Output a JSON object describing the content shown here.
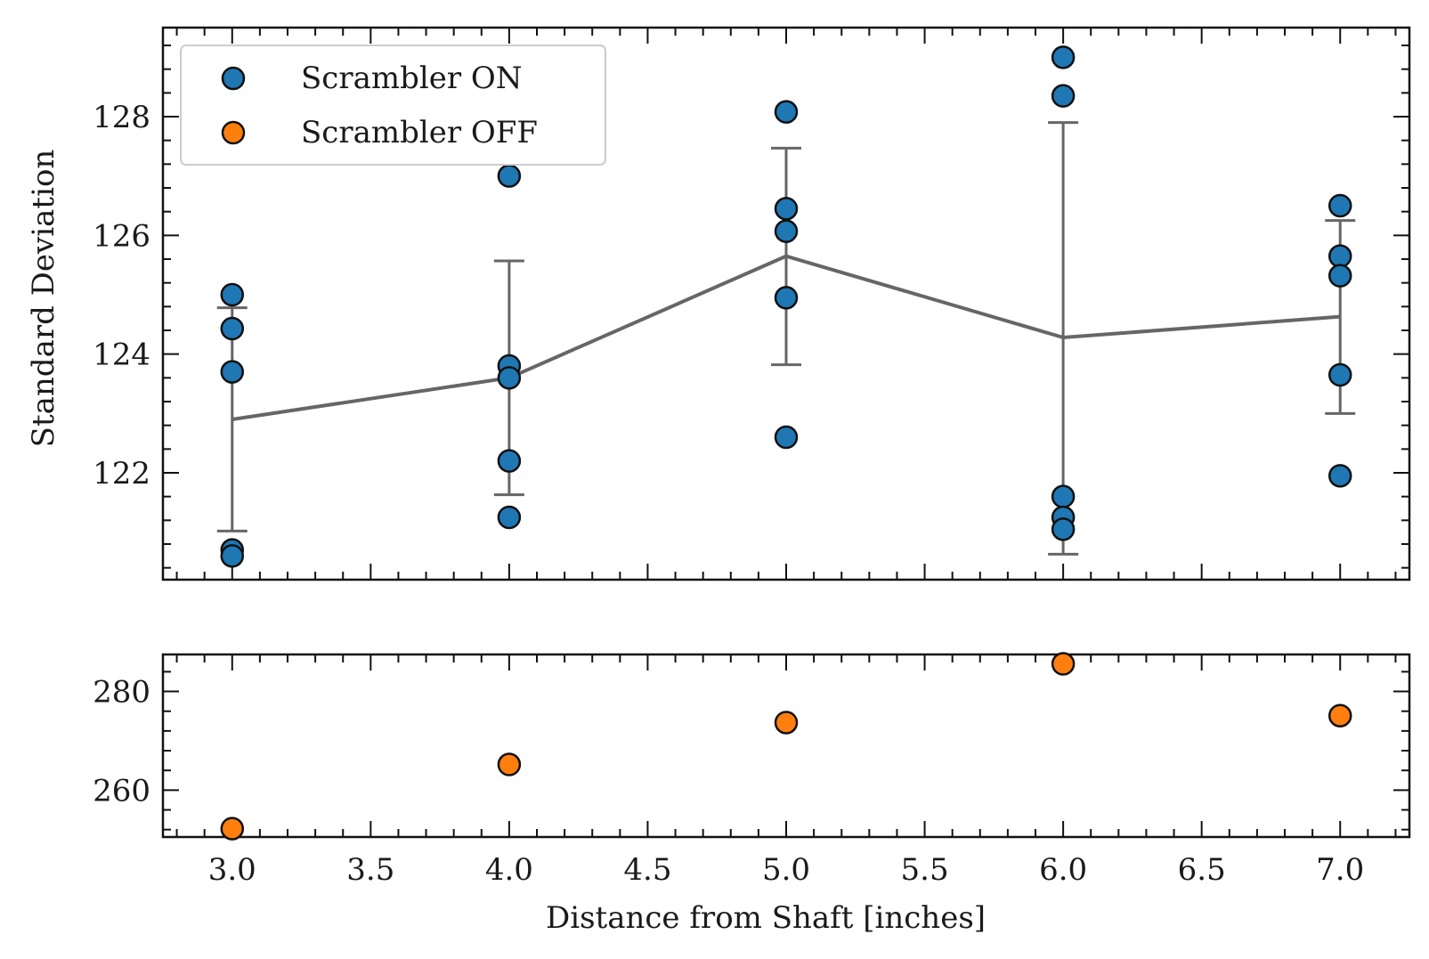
{
  "chart_data": {
    "type": "scatter",
    "xlabel": "Distance from Shaft [inches]",
    "ylabel": "Standard Deviation",
    "xlim": [
      2.75,
      7.25
    ],
    "x_ticks": [
      "3.0",
      "3.5",
      "4.0",
      "4.5",
      "5.0",
      "5.5",
      "6.0",
      "6.5",
      "7.0"
    ],
    "legend": {
      "placement": "top-left",
      "entries": [
        "Scrambler ON",
        "Scrambler OFF"
      ]
    },
    "colors": {
      "on": "#1f77b4",
      "off": "#ff7f0e",
      "mean_line": "#666666",
      "marker_edge": "#111111"
    },
    "panels": [
      {
        "name": "top",
        "ylim": [
          120.2,
          129.5
        ],
        "y_ticks": [
          "122",
          "124",
          "126",
          "128"
        ],
        "series": [
          {
            "name": "Scrambler ON",
            "points": [
              {
                "x": 3.0,
                "y": 125.0
              },
              {
                "x": 3.0,
                "y": 124.43
              },
              {
                "x": 3.0,
                "y": 123.7
              },
              {
                "x": 3.0,
                "y": 120.7
              },
              {
                "x": 3.0,
                "y": 120.6
              },
              {
                "x": 4.0,
                "y": 127.0
              },
              {
                "x": 4.0,
                "y": 123.8
              },
              {
                "x": 4.0,
                "y": 123.6
              },
              {
                "x": 4.0,
                "y": 122.2
              },
              {
                "x": 4.0,
                "y": 121.25
              },
              {
                "x": 5.0,
                "y": 128.08
              },
              {
                "x": 5.0,
                "y": 126.45
              },
              {
                "x": 5.0,
                "y": 126.07
              },
              {
                "x": 5.0,
                "y": 124.95
              },
              {
                "x": 5.0,
                "y": 122.6
              },
              {
                "x": 6.0,
                "y": 129.0
              },
              {
                "x": 6.0,
                "y": 128.35
              },
              {
                "x": 6.0,
                "y": 121.6
              },
              {
                "x": 6.0,
                "y": 121.25
              },
              {
                "x": 6.0,
                "y": 121.05
              },
              {
                "x": 7.0,
                "y": 126.5
              },
              {
                "x": 7.0,
                "y": 125.65
              },
              {
                "x": 7.0,
                "y": 125.32
              },
              {
                "x": 7.0,
                "y": 123.65
              },
              {
                "x": 7.0,
                "y": 121.95
              }
            ]
          }
        ],
        "mean_series": {
          "x": [
            3.0,
            4.0,
            5.0,
            6.0,
            7.0
          ],
          "y": [
            122.9,
            123.6,
            125.65,
            124.28,
            124.63
          ],
          "err_low": [
            121.02,
            121.63,
            123.82,
            120.63,
            123.0
          ],
          "err_high": [
            124.78,
            125.57,
            127.47,
            127.9,
            126.25
          ]
        }
      },
      {
        "name": "bottom",
        "ylim": [
          250.5,
          287.5
        ],
        "y_ticks": [
          "260",
          "280"
        ],
        "series": [
          {
            "name": "Scrambler OFF",
            "points": [
              {
                "x": 3.0,
                "y": 252.2
              },
              {
                "x": 4.0,
                "y": 265.2
              },
              {
                "x": 5.0,
                "y": 273.7
              },
              {
                "x": 6.0,
                "y": 285.6
              },
              {
                "x": 7.0,
                "y": 275.1
              }
            ]
          }
        ]
      }
    ]
  }
}
